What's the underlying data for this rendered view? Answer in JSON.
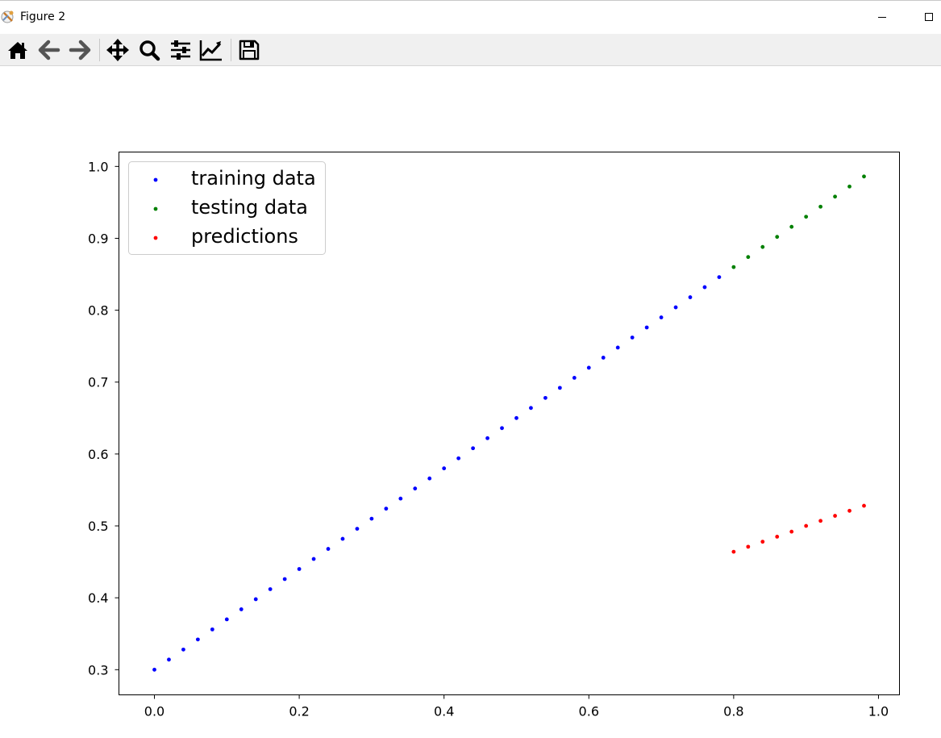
{
  "window": {
    "title": "Figure 2"
  },
  "toolbar": {
    "buttons": [
      {
        "icon": "home-icon"
      },
      {
        "icon": "back-arrow-icon"
      },
      {
        "icon": "forward-arrow-icon"
      },
      {
        "icon": "pan-icon"
      },
      {
        "icon": "zoom-icon"
      },
      {
        "icon": "configure-subplots-icon"
      },
      {
        "icon": "edit-axis-icon"
      },
      {
        "icon": "save-icon"
      }
    ]
  },
  "chart_data": {
    "type": "scatter",
    "title": "",
    "xlabel": "",
    "ylabel": "",
    "xlim": [
      -0.049,
      1.029
    ],
    "ylim": [
      0.265,
      1.02
    ],
    "xticks": [
      "0.0",
      "0.2",
      "0.4",
      "0.6",
      "0.8",
      "1.0"
    ],
    "yticks": [
      "0.3",
      "0.4",
      "0.5",
      "0.6",
      "0.7",
      "0.8",
      "0.9",
      "1.0"
    ],
    "grid": false,
    "legend_position": "upper-left",
    "series": [
      {
        "name": "training data",
        "color": "#0000ff",
        "x": [
          0.0,
          0.02,
          0.04,
          0.06,
          0.08,
          0.1,
          0.12,
          0.14,
          0.16,
          0.18,
          0.2,
          0.22,
          0.24,
          0.26,
          0.28,
          0.3,
          0.32,
          0.34,
          0.36,
          0.38,
          0.4,
          0.42,
          0.44,
          0.46,
          0.48,
          0.5,
          0.52,
          0.54,
          0.56,
          0.58,
          0.6,
          0.62,
          0.64,
          0.66,
          0.68,
          0.7,
          0.72,
          0.74,
          0.76,
          0.78
        ],
        "y": [
          0.3,
          0.314,
          0.328,
          0.342,
          0.356,
          0.37,
          0.384,
          0.398,
          0.412,
          0.426,
          0.44,
          0.454,
          0.468,
          0.482,
          0.496,
          0.51,
          0.524,
          0.538,
          0.552,
          0.566,
          0.58,
          0.594,
          0.608,
          0.622,
          0.636,
          0.65,
          0.664,
          0.678,
          0.692,
          0.706,
          0.72,
          0.734,
          0.748,
          0.762,
          0.776,
          0.79,
          0.804,
          0.818,
          0.832,
          0.846
        ]
      },
      {
        "name": "testing data",
        "color": "#008000",
        "x": [
          0.8,
          0.82,
          0.84,
          0.86,
          0.88,
          0.9,
          0.92,
          0.94,
          0.96,
          0.98
        ],
        "y": [
          0.86,
          0.874,
          0.888,
          0.902,
          0.916,
          0.93,
          0.944,
          0.958,
          0.972,
          0.986
        ]
      },
      {
        "name": "predictions",
        "color": "#ff0000",
        "x": [
          0.8,
          0.82,
          0.84,
          0.86,
          0.88,
          0.9,
          0.92,
          0.94,
          0.96,
          0.98
        ],
        "y": [
          0.464,
          0.471,
          0.478,
          0.485,
          0.492,
          0.5,
          0.507,
          0.514,
          0.521,
          0.528
        ]
      }
    ]
  }
}
